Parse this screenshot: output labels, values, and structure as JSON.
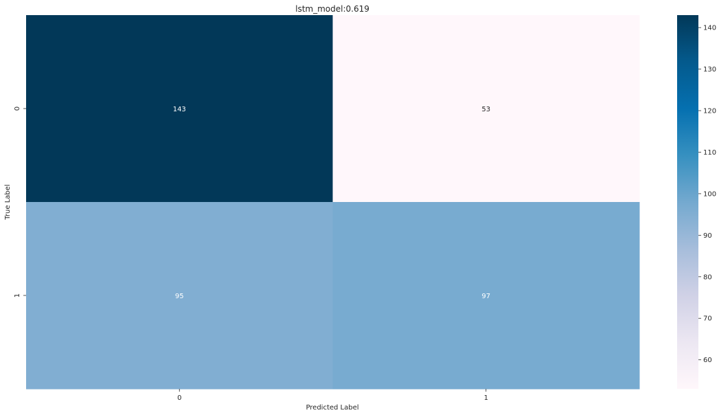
{
  "chart_data": {
    "type": "heatmap",
    "title": "lstm_model:0.619",
    "xlabel": "Predicted Label",
    "ylabel": "True Label",
    "x_categories": [
      "0",
      "1"
    ],
    "y_categories": [
      "0",
      "1"
    ],
    "values": [
      [
        143,
        53
      ],
      [
        95,
        97
      ]
    ],
    "annotations": [
      [
        "143",
        "53"
      ],
      [
        "95",
        "97"
      ]
    ],
    "colormap": "PuBu",
    "vmin": 53,
    "vmax": 143,
    "colorbar": {
      "ticks": [
        60,
        70,
        80,
        90,
        100,
        110,
        120,
        130,
        140
      ],
      "tick_labels": [
        "60",
        "70",
        "80",
        "90",
        "100",
        "110",
        "120",
        "130",
        "140"
      ],
      "placement": "right"
    },
    "grid": false
  }
}
